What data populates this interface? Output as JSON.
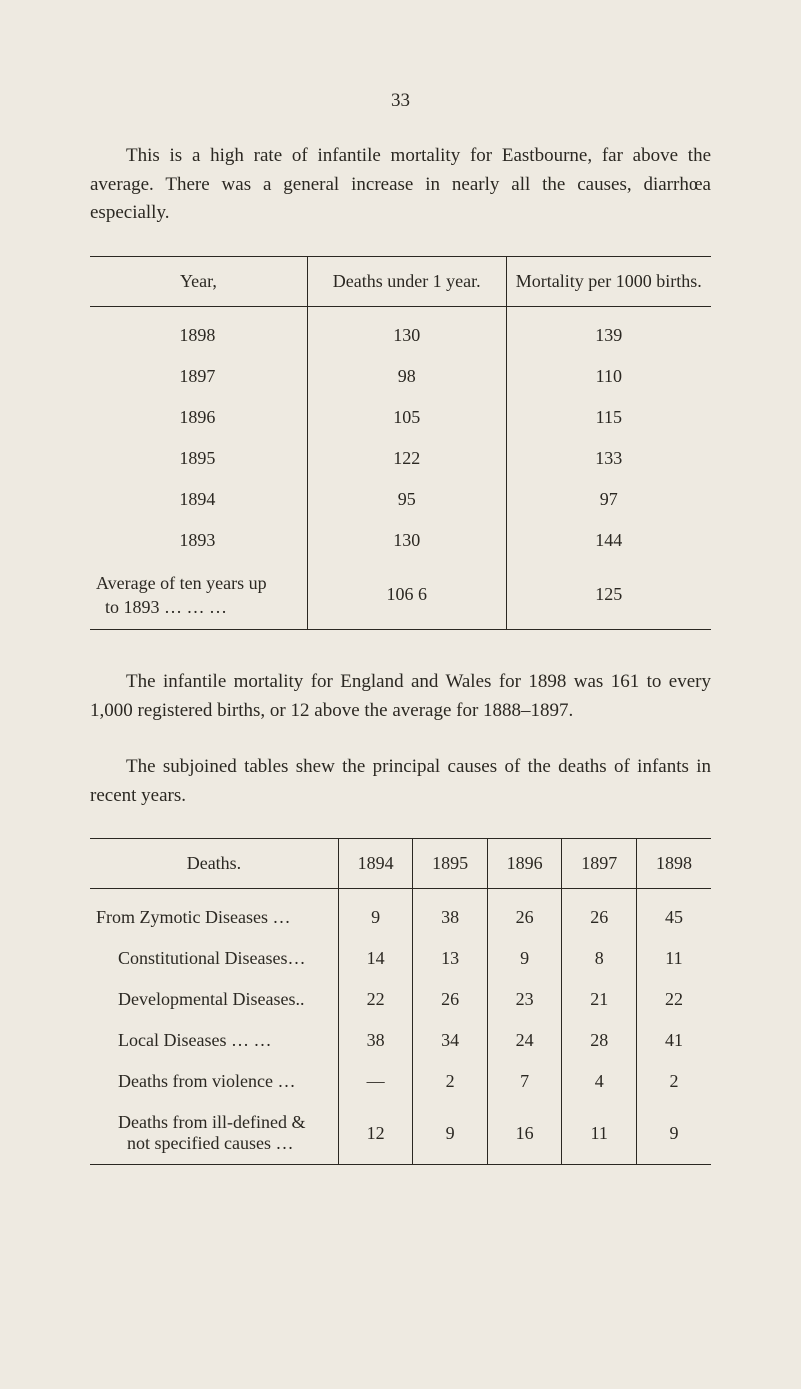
{
  "page_number": "33",
  "para1": "This is a high rate of infantile mortality for Eastbourne, far above the average.  There was a general increase in nearly all the causes, diarrhœa especially.",
  "table1": {
    "headers": [
      "Year,",
      "Deaths under 1 year.",
      "Mortality per 1000 births."
    ],
    "rows": [
      {
        "year": "1898",
        "deaths": "130",
        "mortality": "139"
      },
      {
        "year": "1897",
        "deaths": "98",
        "mortality": "110"
      },
      {
        "year": "1896",
        "deaths": "105",
        "mortality": "115"
      },
      {
        "year": "1895",
        "deaths": "122",
        "mortality": "133"
      },
      {
        "year": "1894",
        "deaths": "95",
        "mortality": "97"
      },
      {
        "year": "1893",
        "deaths": "130",
        "mortality": "144"
      }
    ],
    "avg_label_l1": "Average of ten years up",
    "avg_label_l2": "to 1893   …  …  …",
    "avg_deaths": "106 6",
    "avg_mortality": "125"
  },
  "para2": "The infantile mortality for England and Wales for 1898 was 161 to every 1,000 registered births, or 12 above the average for 1888–1897.",
  "para3": "The subjoined tables shew the principal causes of the deaths of infants in recent years.",
  "table2": {
    "headers": [
      "Deaths.",
      "1894",
      "1895",
      "1896",
      "1897",
      "1898"
    ],
    "rows": [
      {
        "label": "From Zymotic Diseases  …",
        "class": "rowlabel",
        "cells": [
          "9",
          "38",
          "26",
          "26",
          "45"
        ]
      },
      {
        "label": "Constitutional Diseases…",
        "class": "sub",
        "cells": [
          "14",
          "13",
          "9",
          "8",
          "11"
        ]
      },
      {
        "label": "Developmental Diseases..",
        "class": "sub",
        "cells": [
          "22",
          "26",
          "23",
          "21",
          "22"
        ]
      },
      {
        "label": "Local Diseases     …  …",
        "class": "sub",
        "cells": [
          "38",
          "34",
          "24",
          "28",
          "41"
        ]
      },
      {
        "label": "Deaths from violence  …",
        "class": "sub",
        "cells": [
          "—",
          "2",
          "7",
          "4",
          "2"
        ]
      },
      {
        "label_l1": "Deaths from ill-defined &",
        "label_l2": "not specified causes  …",
        "class": "sub",
        "cells": [
          "12",
          "9",
          "16",
          "11",
          "9"
        ]
      }
    ]
  }
}
